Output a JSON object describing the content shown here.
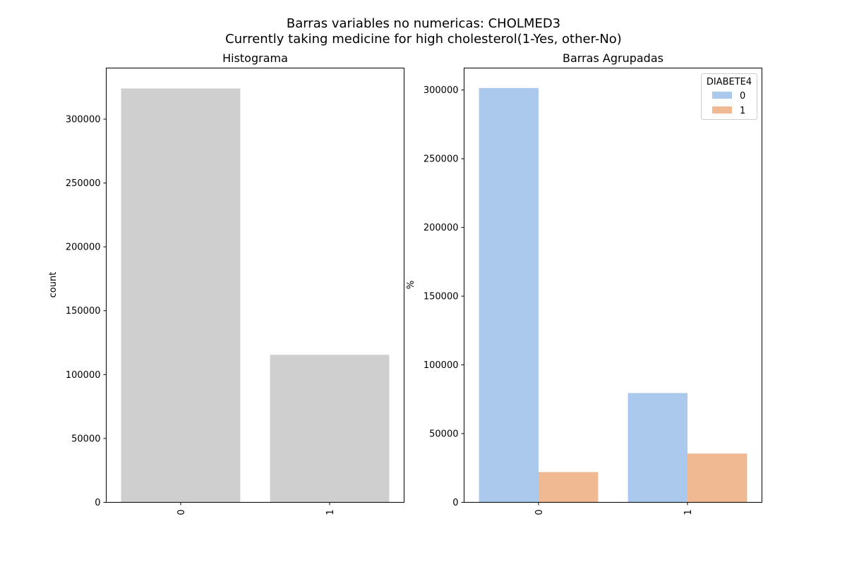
{
  "figure": {
    "suptitle_line1": "Barras variables no numericas: CHOLMED3",
    "suptitle_line2": "Currently taking medicine for high cholesterol(1-Yes, other-No)"
  },
  "chart_data": [
    {
      "type": "bar",
      "title": "Histograma",
      "xlabel": "",
      "ylabel": "count",
      "categories": [
        "0",
        "1"
      ],
      "values": [
        324000,
        115500
      ],
      "ylim": [
        0,
        340000
      ],
      "yticks": [
        0,
        50000,
        100000,
        150000,
        200000,
        250000,
        300000
      ],
      "ytick_labels": [
        "0",
        "50000",
        "100000",
        "150000",
        "200000",
        "250000",
        "300000"
      ],
      "bar_color": "#cfcfcf",
      "grid": false
    },
    {
      "type": "bar",
      "title": "Barras Agrupadas",
      "xlabel": "",
      "ylabel": "%",
      "categories": [
        "0",
        "1"
      ],
      "series": [
        {
          "name": "0",
          "values": [
            301500,
            79500
          ],
          "color": "#abc9ed"
        },
        {
          "name": "1",
          "values": [
            22000,
            35500
          ],
          "color": "#f0b991"
        }
      ],
      "ylim": [
        0,
        316000
      ],
      "yticks": [
        0,
        50000,
        100000,
        150000,
        200000,
        250000,
        300000
      ],
      "ytick_labels": [
        "0",
        "50000",
        "100000",
        "150000",
        "200000",
        "250000",
        "300000"
      ],
      "legend": {
        "title": "DIABETE4",
        "placement": "top-right"
      },
      "grid": false
    }
  ]
}
